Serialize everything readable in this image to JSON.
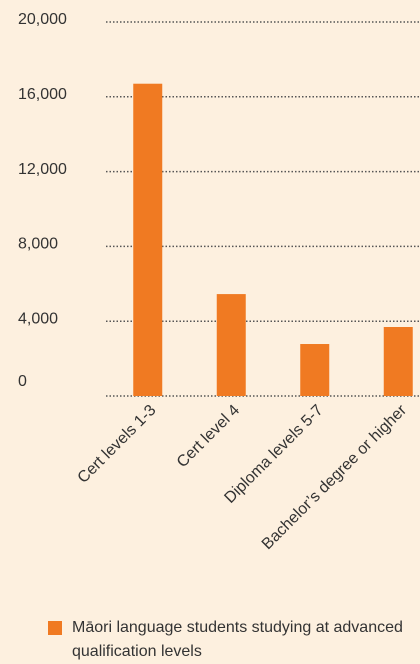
{
  "chart_data": {
    "type": "bar",
    "categories": [
      "Cert levels 1-3",
      "Cert level 4",
      "Diploma levels 5-7",
      "Bachelor’s degree or higher"
    ],
    "series": [
      {
        "name": "Māori language students studying at advanced qualification levels",
        "color": "#f07a22",
        "values": [
          16700,
          5450,
          2780,
          3690
        ]
      }
    ],
    "ylim": [
      0,
      20000
    ],
    "yticks": [
      {
        "value": 0,
        "label": "0"
      },
      {
        "value": 4000,
        "label": "4,000"
      },
      {
        "value": 8000,
        "label": "8,000"
      },
      {
        "value": 12000,
        "label": "12,000"
      },
      {
        "value": 16000,
        "label": "16,000"
      },
      {
        "value": 20000,
        "label": "20,000"
      }
    ],
    "grid": true,
    "legend": "bottom"
  }
}
